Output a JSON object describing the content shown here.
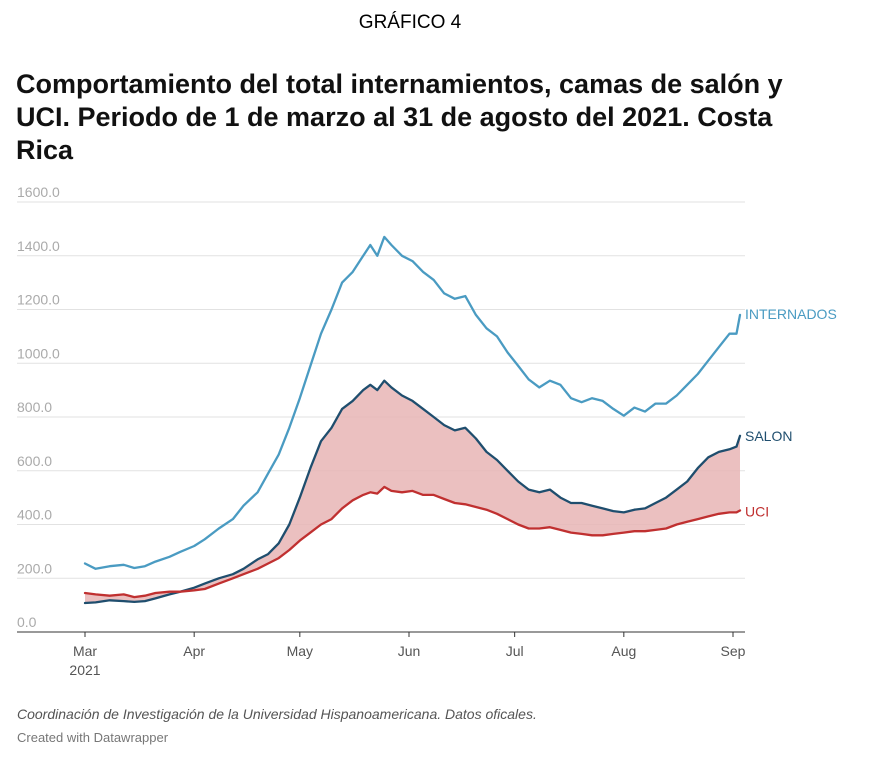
{
  "kicker": "GRÁFICO 4",
  "title": "Comportamiento del total internamientos, camas de  salón y UCI. Periodo de 1 de marzo al 31 de agosto del 2021. Costa Rica",
  "source": "Coordinación de Investigación de la Universidad Hispanoamericana. Datos oficales.",
  "credit": "Created with Datawrapper",
  "chart_data": {
    "type": "line",
    "ylim": [
      0,
      1600
    ],
    "yticks": [
      "0.0",
      "200.0",
      "400.0",
      "600.0",
      "800.0",
      "1000.0",
      "1200.0",
      "1400.0",
      "1600.0"
    ],
    "yticks_values": [
      0,
      200,
      400,
      600,
      800,
      1000,
      1200,
      1400,
      1600
    ],
    "xticks": [
      {
        "date": "2021-03-01",
        "label": "Mar",
        "sublabel": "2021"
      },
      {
        "date": "2021-04-01",
        "label": "Apr",
        "sublabel": ""
      },
      {
        "date": "2021-05-01",
        "label": "May",
        "sublabel": ""
      },
      {
        "date": "2021-06-01",
        "label": "Jun",
        "sublabel": ""
      },
      {
        "date": "2021-07-01",
        "label": "Jul",
        "sublabel": ""
      },
      {
        "date": "2021-08-01",
        "label": "Aug",
        "sublabel": ""
      },
      {
        "date": "2021-09-01",
        "label": "Sep",
        "sublabel": ""
      }
    ],
    "grid": true,
    "area_between": [
      "SALON",
      "UCI"
    ],
    "area_color": "#e8b5b5",
    "series": [
      {
        "name": "INTERNADOS",
        "color": "#4a9bc2",
        "points": [
          [
            "2021-03-01",
            255
          ],
          [
            "2021-03-04",
            235
          ],
          [
            "2021-03-08",
            245
          ],
          [
            "2021-03-12",
            250
          ],
          [
            "2021-03-15",
            238
          ],
          [
            "2021-03-18",
            245
          ],
          [
            "2021-03-21",
            262
          ],
          [
            "2021-03-25",
            280
          ],
          [
            "2021-03-28",
            298
          ],
          [
            "2021-04-01",
            320
          ],
          [
            "2021-04-04",
            345
          ],
          [
            "2021-04-08",
            385
          ],
          [
            "2021-04-12",
            420
          ],
          [
            "2021-04-15",
            470
          ],
          [
            "2021-04-19",
            520
          ],
          [
            "2021-04-22",
            590
          ],
          [
            "2021-04-25",
            660
          ],
          [
            "2021-04-28",
            760
          ],
          [
            "2021-05-01",
            870
          ],
          [
            "2021-05-04",
            990
          ],
          [
            "2021-05-07",
            1110
          ],
          [
            "2021-05-10",
            1200
          ],
          [
            "2021-05-13",
            1300
          ],
          [
            "2021-05-16",
            1340
          ],
          [
            "2021-05-19",
            1400
          ],
          [
            "2021-05-21",
            1440
          ],
          [
            "2021-05-23",
            1400
          ],
          [
            "2021-05-25",
            1470
          ],
          [
            "2021-05-27",
            1440
          ],
          [
            "2021-05-30",
            1400
          ],
          [
            "2021-06-02",
            1380
          ],
          [
            "2021-06-05",
            1340
          ],
          [
            "2021-06-08",
            1310
          ],
          [
            "2021-06-11",
            1260
          ],
          [
            "2021-06-14",
            1240
          ],
          [
            "2021-06-17",
            1250
          ],
          [
            "2021-06-20",
            1180
          ],
          [
            "2021-06-23",
            1130
          ],
          [
            "2021-06-26",
            1100
          ],
          [
            "2021-06-29",
            1040
          ],
          [
            "2021-07-02",
            990
          ],
          [
            "2021-07-05",
            940
          ],
          [
            "2021-07-08",
            910
          ],
          [
            "2021-07-11",
            935
          ],
          [
            "2021-07-14",
            920
          ],
          [
            "2021-07-17",
            870
          ],
          [
            "2021-07-20",
            855
          ],
          [
            "2021-07-23",
            870
          ],
          [
            "2021-07-26",
            860
          ],
          [
            "2021-07-29",
            830
          ],
          [
            "2021-08-01",
            805
          ],
          [
            "2021-08-04",
            835
          ],
          [
            "2021-08-07",
            820
          ],
          [
            "2021-08-10",
            850
          ],
          [
            "2021-08-13",
            850
          ],
          [
            "2021-08-16",
            880
          ],
          [
            "2021-08-19",
            920
          ],
          [
            "2021-08-22",
            960
          ],
          [
            "2021-08-25",
            1010
          ],
          [
            "2021-08-28",
            1060
          ],
          [
            "2021-08-31",
            1110
          ],
          [
            "2021-09-02",
            1110
          ],
          [
            "2021-09-03",
            1180
          ]
        ]
      },
      {
        "name": "SALON",
        "color": "#1f4e6e",
        "points": [
          [
            "2021-03-01",
            108
          ],
          [
            "2021-03-04",
            110
          ],
          [
            "2021-03-08",
            118
          ],
          [
            "2021-03-12",
            115
          ],
          [
            "2021-03-15",
            112
          ],
          [
            "2021-03-18",
            115
          ],
          [
            "2021-03-21",
            125
          ],
          [
            "2021-03-25",
            140
          ],
          [
            "2021-03-28",
            150
          ],
          [
            "2021-04-01",
            165
          ],
          [
            "2021-04-04",
            180
          ],
          [
            "2021-04-08",
            200
          ],
          [
            "2021-04-12",
            215
          ],
          [
            "2021-04-15",
            235
          ],
          [
            "2021-04-19",
            270
          ],
          [
            "2021-04-22",
            290
          ],
          [
            "2021-04-25",
            330
          ],
          [
            "2021-04-28",
            400
          ],
          [
            "2021-05-01",
            500
          ],
          [
            "2021-05-04",
            610
          ],
          [
            "2021-05-07",
            710
          ],
          [
            "2021-05-10",
            760
          ],
          [
            "2021-05-13",
            830
          ],
          [
            "2021-05-16",
            860
          ],
          [
            "2021-05-19",
            900
          ],
          [
            "2021-05-21",
            920
          ],
          [
            "2021-05-23",
            900
          ],
          [
            "2021-05-25",
            935
          ],
          [
            "2021-05-27",
            910
          ],
          [
            "2021-05-30",
            880
          ],
          [
            "2021-06-02",
            860
          ],
          [
            "2021-06-05",
            830
          ],
          [
            "2021-06-08",
            800
          ],
          [
            "2021-06-11",
            770
          ],
          [
            "2021-06-14",
            750
          ],
          [
            "2021-06-17",
            760
          ],
          [
            "2021-06-20",
            720
          ],
          [
            "2021-06-23",
            670
          ],
          [
            "2021-06-26",
            640
          ],
          [
            "2021-06-29",
            600
          ],
          [
            "2021-07-02",
            560
          ],
          [
            "2021-07-05",
            530
          ],
          [
            "2021-07-08",
            520
          ],
          [
            "2021-07-11",
            530
          ],
          [
            "2021-07-14",
            500
          ],
          [
            "2021-07-17",
            480
          ],
          [
            "2021-07-20",
            480
          ],
          [
            "2021-07-23",
            470
          ],
          [
            "2021-07-26",
            460
          ],
          [
            "2021-07-29",
            450
          ],
          [
            "2021-08-01",
            445
          ],
          [
            "2021-08-04",
            455
          ],
          [
            "2021-08-07",
            460
          ],
          [
            "2021-08-10",
            480
          ],
          [
            "2021-08-13",
            500
          ],
          [
            "2021-08-16",
            530
          ],
          [
            "2021-08-19",
            560
          ],
          [
            "2021-08-22",
            610
          ],
          [
            "2021-08-25",
            650
          ],
          [
            "2021-08-28",
            670
          ],
          [
            "2021-08-31",
            680
          ],
          [
            "2021-09-02",
            690
          ],
          [
            "2021-09-03",
            730
          ]
        ]
      },
      {
        "name": "UCI",
        "color": "#c03030",
        "points": [
          [
            "2021-03-01",
            145
          ],
          [
            "2021-03-04",
            140
          ],
          [
            "2021-03-08",
            135
          ],
          [
            "2021-03-12",
            140
          ],
          [
            "2021-03-15",
            130
          ],
          [
            "2021-03-18",
            135
          ],
          [
            "2021-03-21",
            145
          ],
          [
            "2021-03-25",
            150
          ],
          [
            "2021-03-28",
            150
          ],
          [
            "2021-04-01",
            155
          ],
          [
            "2021-04-04",
            160
          ],
          [
            "2021-04-08",
            180
          ],
          [
            "2021-04-12",
            200
          ],
          [
            "2021-04-15",
            215
          ],
          [
            "2021-04-19",
            235
          ],
          [
            "2021-04-22",
            255
          ],
          [
            "2021-04-25",
            275
          ],
          [
            "2021-04-28",
            305
          ],
          [
            "2021-05-01",
            340
          ],
          [
            "2021-05-04",
            370
          ],
          [
            "2021-05-07",
            400
          ],
          [
            "2021-05-10",
            420
          ],
          [
            "2021-05-13",
            460
          ],
          [
            "2021-05-16",
            490
          ],
          [
            "2021-05-19",
            510
          ],
          [
            "2021-05-21",
            520
          ],
          [
            "2021-05-23",
            515
          ],
          [
            "2021-05-25",
            540
          ],
          [
            "2021-05-27",
            525
          ],
          [
            "2021-05-30",
            520
          ],
          [
            "2021-06-02",
            525
          ],
          [
            "2021-06-05",
            510
          ],
          [
            "2021-06-08",
            510
          ],
          [
            "2021-06-11",
            495
          ],
          [
            "2021-06-14",
            480
          ],
          [
            "2021-06-17",
            475
          ],
          [
            "2021-06-20",
            465
          ],
          [
            "2021-06-23",
            455
          ],
          [
            "2021-06-26",
            440
          ],
          [
            "2021-06-29",
            420
          ],
          [
            "2021-07-02",
            400
          ],
          [
            "2021-07-05",
            385
          ],
          [
            "2021-07-08",
            385
          ],
          [
            "2021-07-11",
            390
          ],
          [
            "2021-07-14",
            380
          ],
          [
            "2021-07-17",
            370
          ],
          [
            "2021-07-20",
            365
          ],
          [
            "2021-07-23",
            360
          ],
          [
            "2021-07-26",
            360
          ],
          [
            "2021-07-29",
            365
          ],
          [
            "2021-08-01",
            370
          ],
          [
            "2021-08-04",
            375
          ],
          [
            "2021-08-07",
            375
          ],
          [
            "2021-08-10",
            380
          ],
          [
            "2021-08-13",
            385
          ],
          [
            "2021-08-16",
            400
          ],
          [
            "2021-08-19",
            410
          ],
          [
            "2021-08-22",
            420
          ],
          [
            "2021-08-25",
            430
          ],
          [
            "2021-08-28",
            440
          ],
          [
            "2021-08-31",
            445
          ],
          [
            "2021-09-02",
            445
          ],
          [
            "2021-09-03",
            452
          ]
        ]
      }
    ]
  }
}
